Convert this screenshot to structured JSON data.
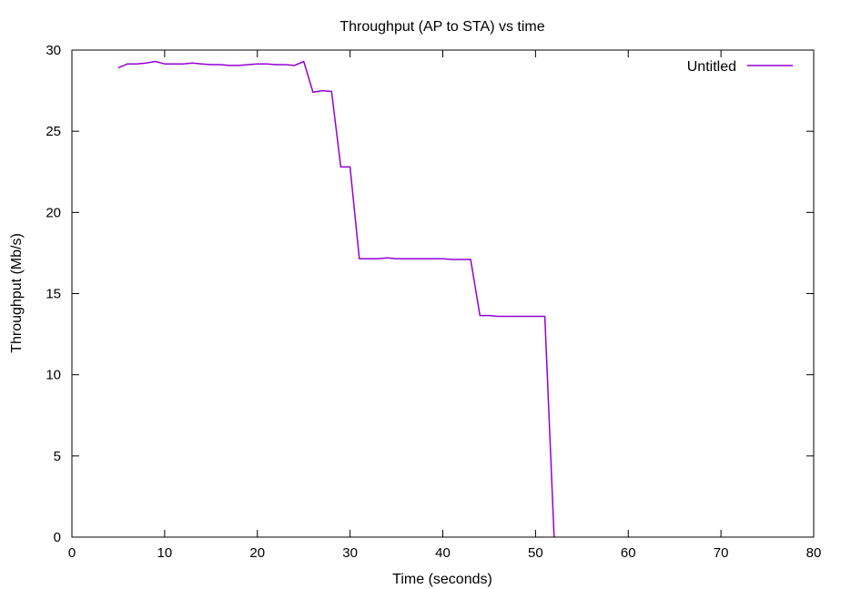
{
  "chart_data": {
    "type": "line",
    "title": "Throughput (AP to STA) vs time",
    "xlabel": "Time (seconds)",
    "ylabel": "Throughput (Mb/s)",
    "xlim": [
      0,
      80
    ],
    "ylim": [
      0,
      30
    ],
    "xticks": [
      0,
      10,
      20,
      30,
      40,
      50,
      60,
      70,
      80
    ],
    "yticks": [
      0,
      5,
      10,
      15,
      20,
      25,
      30
    ],
    "grid": false,
    "legend_position": "top-right",
    "series": [
      {
        "name": "Untitled",
        "color": "#9400d3",
        "x": [
          5,
          6,
          7,
          8,
          9,
          10,
          11,
          12,
          13,
          14,
          15,
          16,
          17,
          18,
          19,
          20,
          21,
          22,
          23,
          24,
          25,
          26,
          27,
          28,
          29,
          30,
          31,
          32,
          33,
          34,
          35,
          36,
          37,
          38,
          39,
          40,
          41,
          42,
          43,
          44,
          45,
          46,
          47,
          48,
          49,
          50,
          51,
          52
        ],
        "y": [
          28.9,
          29.15,
          29.15,
          29.2,
          29.3,
          29.15,
          29.15,
          29.15,
          29.2,
          29.15,
          29.1,
          29.1,
          29.05,
          29.05,
          29.1,
          29.15,
          29.15,
          29.1,
          29.1,
          29.05,
          29.3,
          27.4,
          27.5,
          27.45,
          22.8,
          22.8,
          17.15,
          17.15,
          17.15,
          17.2,
          17.15,
          17.15,
          17.15,
          17.15,
          17.15,
          17.15,
          17.1,
          17.1,
          17.1,
          13.65,
          13.65,
          13.6,
          13.6,
          13.6,
          13.6,
          13.6,
          13.6,
          0
        ]
      }
    ]
  }
}
